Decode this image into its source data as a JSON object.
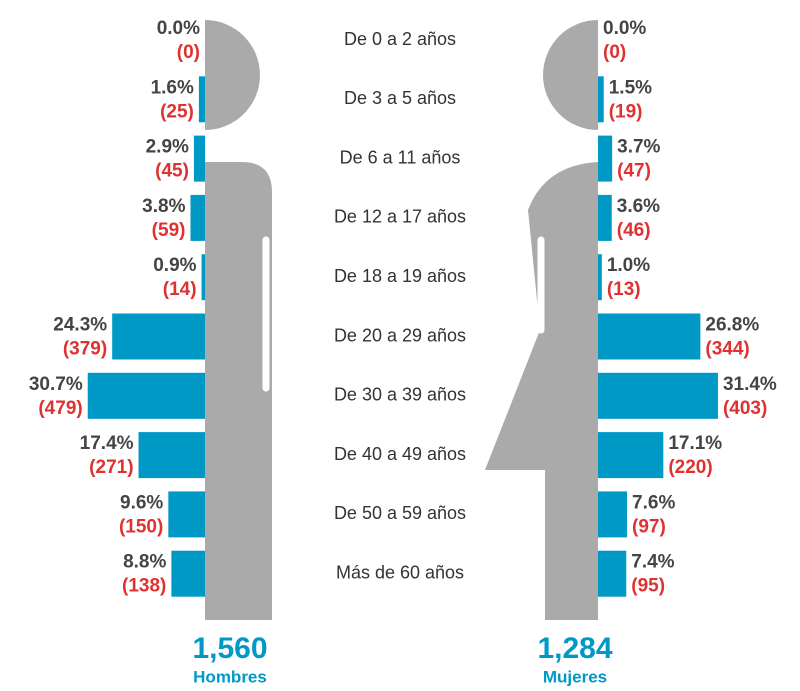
{
  "chart_data": {
    "type": "butterfly",
    "categories": [
      "De 0 a 2 años",
      "De 3 a 5 años",
      "De 6 a 11 años",
      "De 12 a 17 años",
      "De 18 a 19 años",
      "De 20 a 29 años",
      "De 30 a 39 años",
      "De 40 a 49 años",
      "De 50 a 59 años",
      "Más de 60 años"
    ],
    "series": [
      {
        "name": "Hombres",
        "color": "#0099c6",
        "total": "1,560",
        "values": [
          0,
          1.6,
          2.9,
          3.8,
          0.9,
          24.3,
          30.7,
          17.4,
          9.6,
          8.8
        ],
        "value_labels": [
          "0.0%",
          "1.6%",
          "2.9%",
          "3.8%",
          "0.9%",
          "24.3%",
          "30.7%",
          "17.4%",
          "9.6%",
          "8.8%"
        ],
        "counts": [
          0,
          25,
          45,
          59,
          14,
          379,
          479,
          271,
          150,
          138
        ],
        "count_labels": [
          "(0)",
          "(25)",
          "(45)",
          "(59)",
          "(14)",
          "(379)",
          "(479)",
          "(271)",
          "(150)",
          "(138)"
        ]
      },
      {
        "name": "Mujeres",
        "color": "#0099c6",
        "total": "1,284",
        "values": [
          0,
          1.5,
          3.7,
          3.6,
          1.0,
          26.8,
          31.4,
          17.1,
          7.6,
          7.4
        ],
        "value_labels": [
          "0.0%",
          "1.5%",
          "3.7%",
          "3.6%",
          "1.0%",
          "26.8%",
          "31.4%",
          "17.1%",
          "7.6%",
          "7.4%"
        ],
        "counts": [
          0,
          19,
          47,
          46,
          13,
          344,
          403,
          220,
          97,
          95
        ],
        "count_labels": [
          "(0)",
          "(19)",
          "(47)",
          "(46)",
          "(13)",
          "(344)",
          "(403)",
          "(220)",
          "(97)",
          "(95)"
        ]
      }
    ]
  }
}
